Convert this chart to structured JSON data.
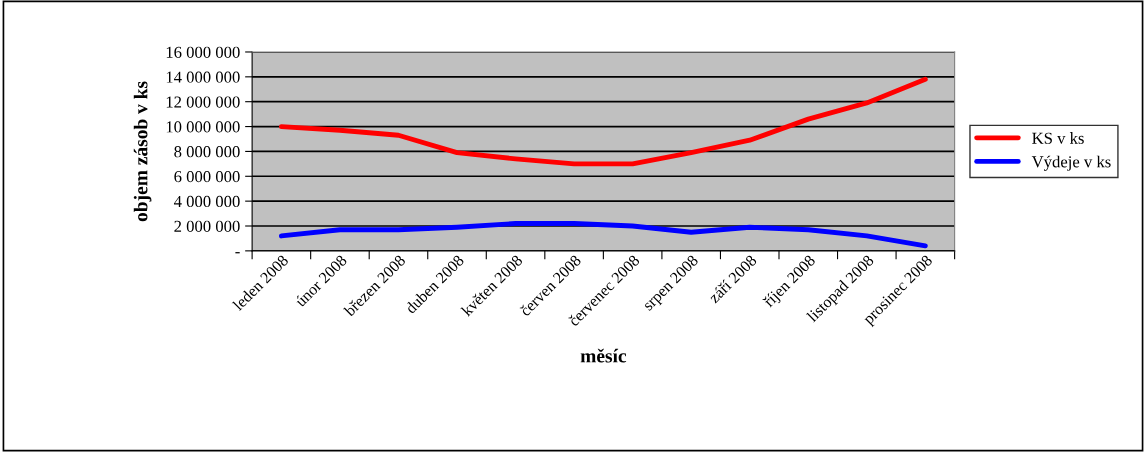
{
  "chart_data": {
    "type": "line",
    "xlabel": "měsíc",
    "ylabel": "objem zásob v ks",
    "categories": [
      "leden 2008",
      "únor 2008",
      "březen 2008",
      "duben 2008",
      "květen 2008",
      "červen 2008",
      "červenec 2008",
      "srpen 2008",
      "září 2008",
      "říjen 2008",
      "listopad 2008",
      "prosinec 2008"
    ],
    "series": [
      {
        "name": "KS v ks",
        "color": "#ff0000",
        "values": [
          10000000,
          9700000,
          9300000,
          7900000,
          7400000,
          7000000,
          7000000,
          7900000,
          8900000,
          10600000,
          11900000,
          13800000
        ]
      },
      {
        "name": "Výdeje v ks",
        "color": "#0000ff",
        "values": [
          1200000,
          1700000,
          1700000,
          1900000,
          2200000,
          2200000,
          2000000,
          1500000,
          1900000,
          1700000,
          1200000,
          400000
        ]
      }
    ],
    "ylim": [
      0,
      16000000
    ],
    "yticks": [
      {
        "value": 0,
        "label": "-"
      },
      {
        "value": 2000000,
        "label": "2 000 000"
      },
      {
        "value": 4000000,
        "label": "4 000 000"
      },
      {
        "value": 6000000,
        "label": "6 000 000"
      },
      {
        "value": 8000000,
        "label": "8 000 000"
      },
      {
        "value": 10000000,
        "label": "10 000 000"
      },
      {
        "value": 12000000,
        "label": "12 000 000"
      },
      {
        "value": 14000000,
        "label": "14 000 000"
      },
      {
        "value": 16000000,
        "label": "16 000 000"
      }
    ],
    "grid": "y",
    "legend": "right",
    "marker": "none",
    "line_style": "solid"
  }
}
